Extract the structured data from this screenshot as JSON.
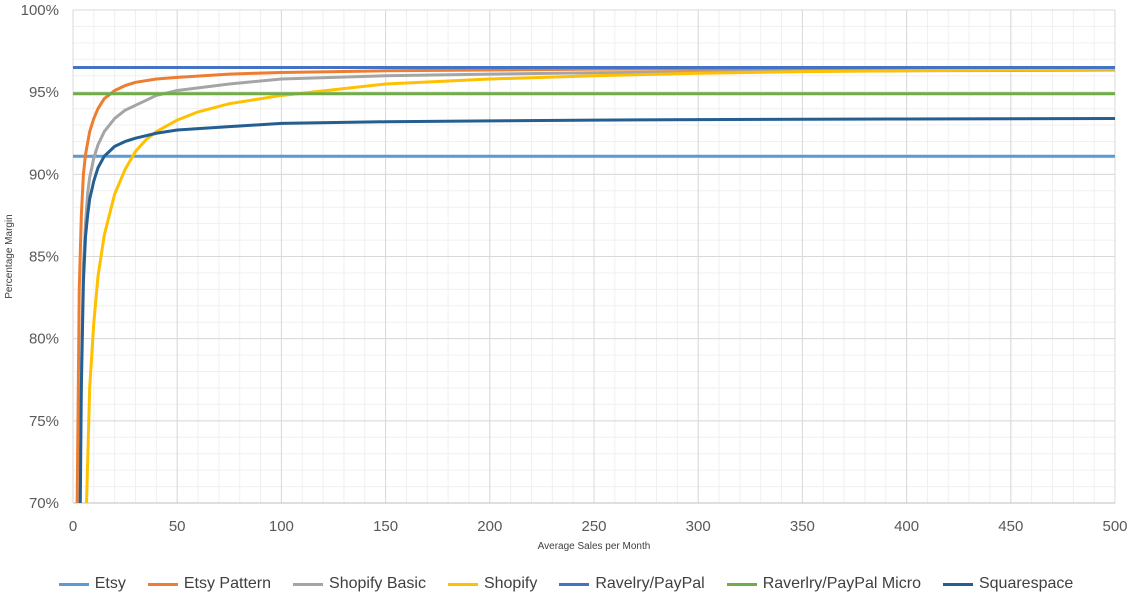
{
  "chart_data": {
    "type": "line",
    "title": "",
    "xlabel": "Average Sales per Month",
    "ylabel": "Percentage Margin",
    "xlim": [
      0,
      500
    ],
    "ylim": [
      0.7,
      1.0
    ],
    "x_ticks": [
      "0",
      "50",
      "100",
      "150",
      "200",
      "250",
      "300",
      "350",
      "400",
      "450",
      "500"
    ],
    "y_ticks": [
      "70%",
      "75%",
      "80%",
      "85%",
      "90%",
      "95%",
      "100%"
    ],
    "grid": true,
    "legend_position": "bottom",
    "series": [
      {
        "name": "Etsy",
        "color": "#5B9BD5",
        "x": [
          0,
          500
        ],
        "y": [
          0.911,
          0.911
        ]
      },
      {
        "name": "Etsy Pattern",
        "color": "#ED7D31",
        "x": [
          2,
          3,
          4,
          5,
          6,
          8,
          10,
          12,
          15,
          20,
          25,
          30,
          40,
          50,
          75,
          100,
          150,
          200,
          250,
          300,
          350,
          400,
          450,
          500
        ],
        "y": [
          0.7,
          0.83,
          0.875,
          0.9,
          0.912,
          0.926,
          0.934,
          0.94,
          0.946,
          0.951,
          0.954,
          0.956,
          0.958,
          0.959,
          0.961,
          0.962,
          0.963,
          0.9635,
          0.964,
          0.964,
          0.9642,
          0.9643,
          0.9644,
          0.9645
        ]
      },
      {
        "name": "Shopify Basic",
        "color": "#A5A5A5",
        "x": [
          3.3,
          4,
          5,
          6,
          7,
          8,
          10,
          12,
          15,
          20,
          25,
          30,
          40,
          50,
          75,
          100,
          150,
          200,
          250,
          300,
          350,
          400,
          450,
          500
        ],
        "y": [
          0.7,
          0.78,
          0.845,
          0.87,
          0.888,
          0.898,
          0.91,
          0.918,
          0.926,
          0.934,
          0.939,
          0.942,
          0.948,
          0.951,
          0.955,
          0.958,
          0.96,
          0.961,
          0.9618,
          0.9623,
          0.9627,
          0.963,
          0.9632,
          0.9635
        ]
      },
      {
        "name": "Shopify",
        "color": "#FFC000",
        "x": [
          6.5,
          8,
          10,
          12,
          15,
          20,
          25,
          30,
          35,
          40,
          50,
          60,
          75,
          100,
          150,
          200,
          250,
          300,
          350,
          400,
          450,
          500
        ],
        "y": [
          0.7,
          0.77,
          0.81,
          0.838,
          0.863,
          0.888,
          0.903,
          0.914,
          0.921,
          0.926,
          0.933,
          0.938,
          0.943,
          0.948,
          0.955,
          0.958,
          0.96,
          0.9615,
          0.9625,
          0.963,
          0.9635,
          0.964
        ]
      },
      {
        "name": "Ravelry/PayPal",
        "color": "#4472C4",
        "x": [
          0,
          500
        ],
        "y": [
          0.965,
          0.965
        ]
      },
      {
        "name": "Raverlry/PayPal Micro",
        "color": "#70AD47",
        "x": [
          0,
          500
        ],
        "y": [
          0.949,
          0.949
        ]
      },
      {
        "name": "Squarespace",
        "color": "#255E91",
        "x": [
          3.5,
          4,
          5,
          6,
          7,
          8,
          10,
          12,
          15,
          20,
          25,
          30,
          40,
          50,
          75,
          100,
          150,
          200,
          250,
          300,
          350,
          400,
          450,
          500
        ],
        "y": [
          0.7,
          0.77,
          0.835,
          0.862,
          0.875,
          0.885,
          0.896,
          0.904,
          0.911,
          0.917,
          0.92,
          0.922,
          0.925,
          0.927,
          0.929,
          0.931,
          0.932,
          0.9325,
          0.933,
          0.9333,
          0.9335,
          0.9337,
          0.9338,
          0.934
        ]
      }
    ]
  }
}
